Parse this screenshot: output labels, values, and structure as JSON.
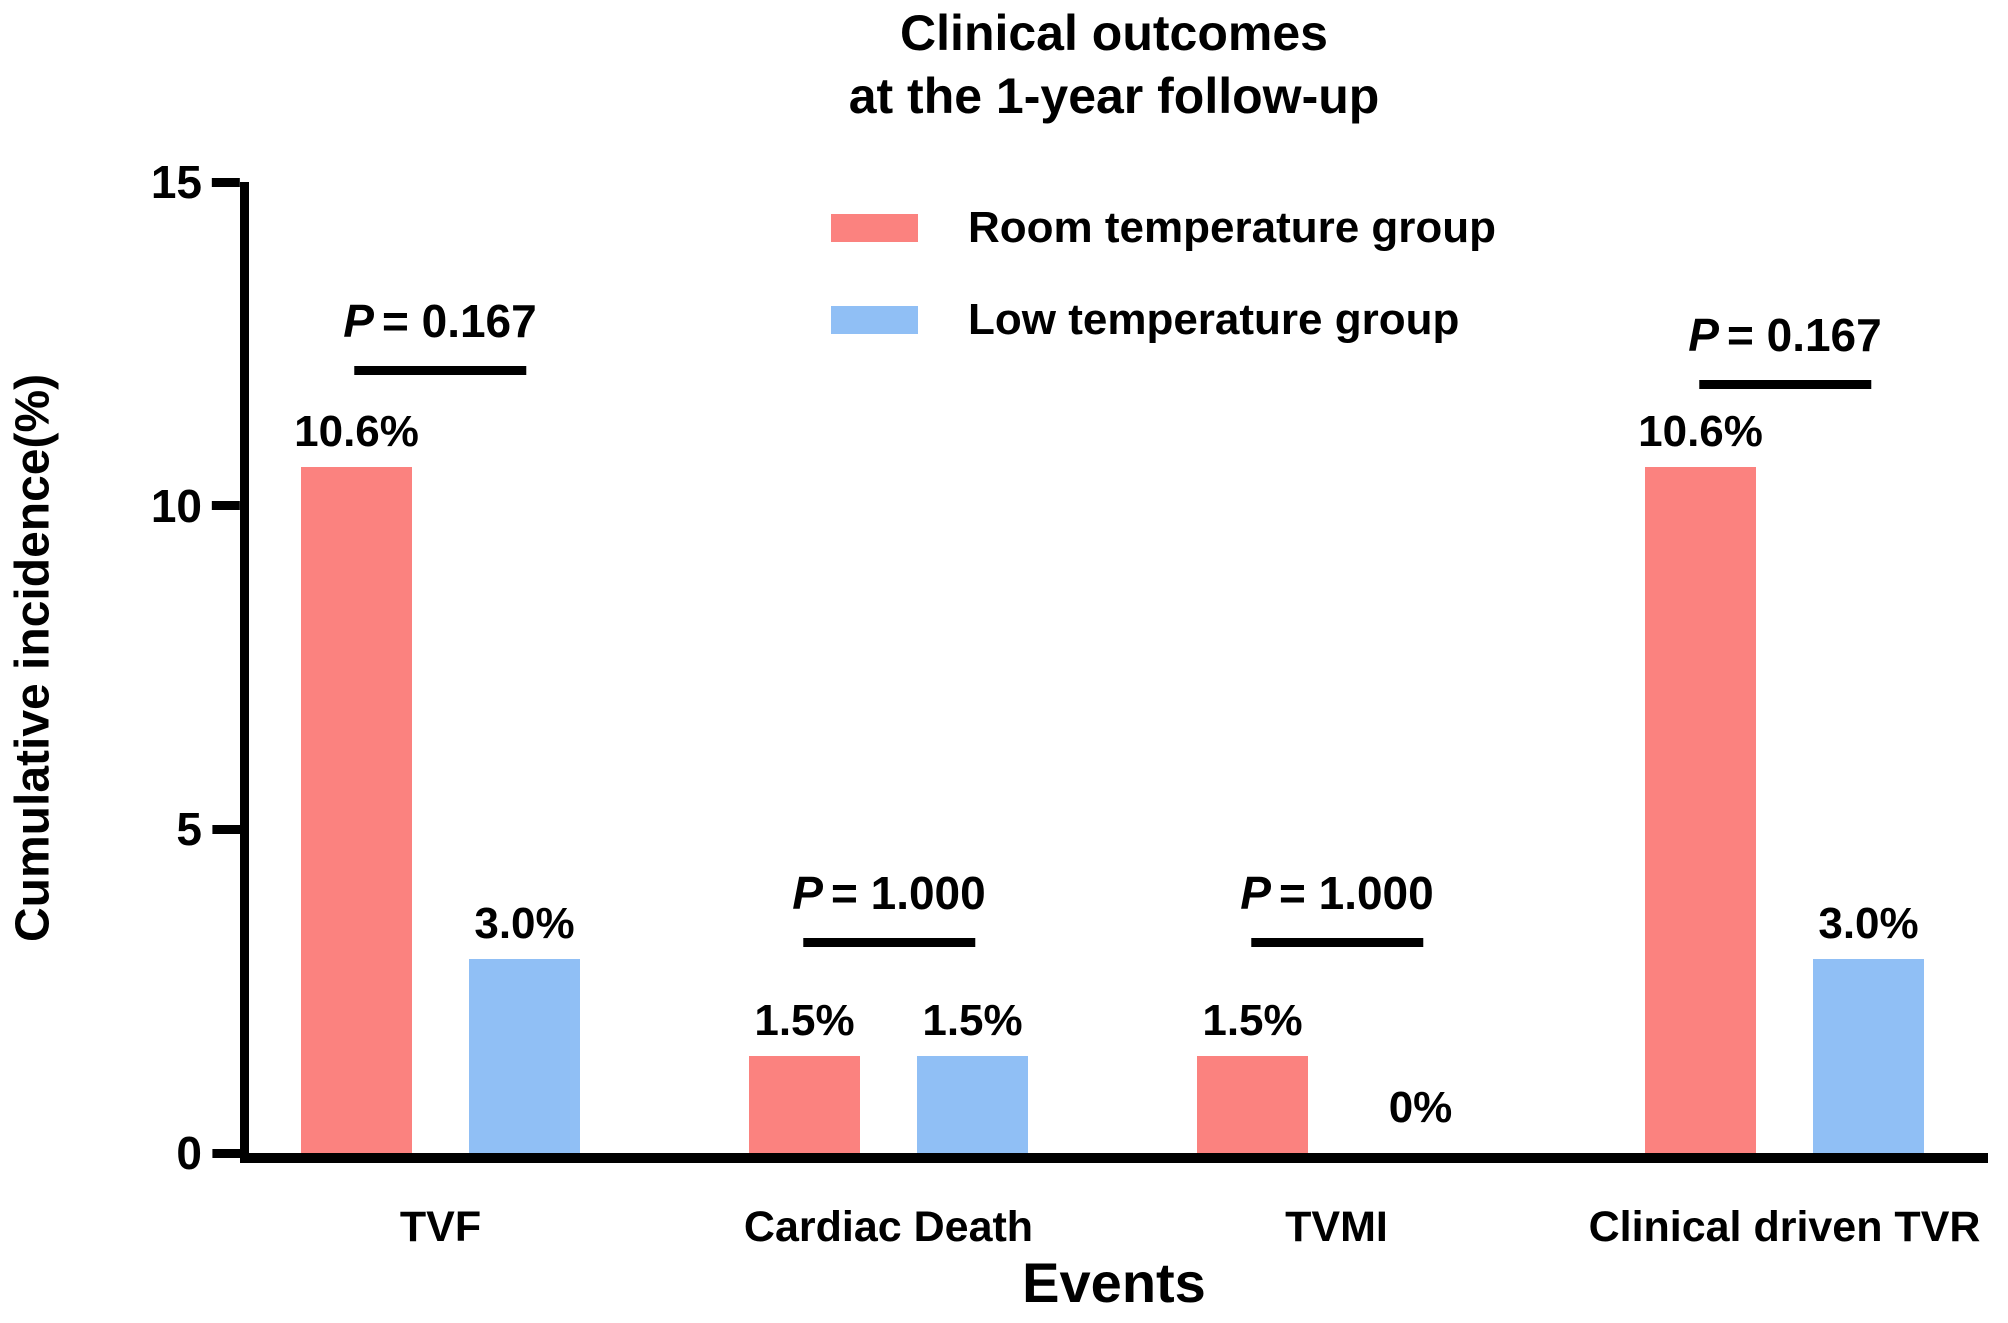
{
  "chart_data": {
    "type": "bar",
    "title": "Clinical outcomes at the 1-year follow-up",
    "title_lines": [
      "Clinical outcomes",
      "at the 1-year follow-up"
    ],
    "xlabel": "Events",
    "ylabel": "Cumulative incidence(%)",
    "ylim": [
      0,
      15
    ],
    "yticks": [
      {
        "value": 15,
        "label": "15"
      },
      {
        "value": 10,
        "label": "10"
      },
      {
        "value": 5,
        "label": "5"
      },
      {
        "value": 0,
        "label": "0"
      }
    ],
    "grid": false,
    "legend_position": "top-center",
    "categories": [
      "TVF",
      "Cardiac Death",
      "TVMI",
      "Clinical driven TVR"
    ],
    "series": [
      {
        "name": "Room temperature group",
        "color": "#FB827F",
        "values": [
          10.6,
          1.5,
          1.5,
          10.6
        ],
        "value_labels": [
          "10.6%",
          "1.5%",
          "1.5%",
          "10.6%"
        ]
      },
      {
        "name": "Low temperature group",
        "color": "#90BFF5",
        "values": [
          3.0,
          1.5,
          0,
          3.0
        ],
        "value_labels": [
          "3.0%",
          "1.5%",
          "0%",
          "3.0%"
        ]
      }
    ],
    "p_annotations": [
      {
        "category": "TVF",
        "symbol": "P",
        "text": "= 0.167"
      },
      {
        "category": "Cardiac Death",
        "symbol": "P",
        "text": "= 1.000"
      },
      {
        "category": "TVMI",
        "symbol": "P",
        "text": "= 1.000"
      },
      {
        "category": "Clinical driven TVR",
        "symbol": "P",
        "text": "= 0.167"
      }
    ]
  }
}
